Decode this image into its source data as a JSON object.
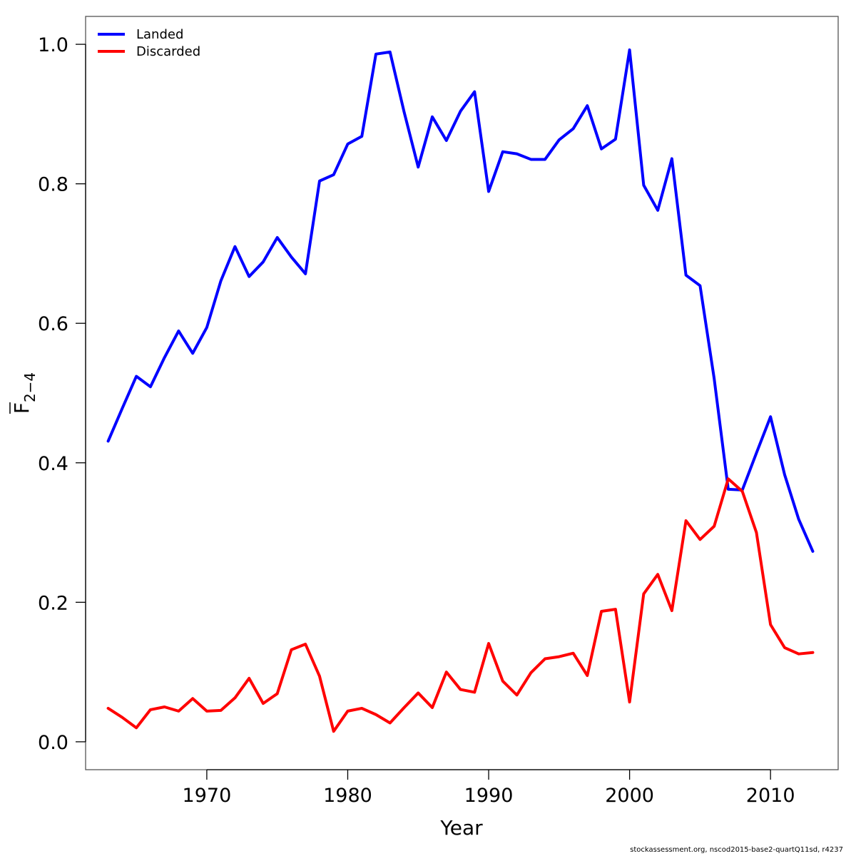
{
  "chart_data": {
    "type": "line",
    "xlabel": "Year",
    "ylabel": "F̅₂₋₄",
    "ylabel_main": "F",
    "ylabel_sub": "2−4",
    "xlim": [
      1961.4,
      2014.8
    ],
    "ylim": [
      -0.04,
      1.04
    ],
    "xticks": [
      1970,
      1980,
      1990,
      2000,
      2010
    ],
    "yticks": [
      0.0,
      0.2,
      0.4,
      0.6,
      0.8,
      1.0
    ],
    "ytick_labels": [
      "0.0",
      "0.2",
      "0.4",
      "0.6",
      "0.8",
      "1.0"
    ],
    "legend_position": "top-left",
    "x": [
      1963,
      1964,
      1965,
      1966,
      1967,
      1968,
      1969,
      1970,
      1971,
      1972,
      1973,
      1974,
      1975,
      1976,
      1977,
      1978,
      1979,
      1980,
      1981,
      1982,
      1983,
      1984,
      1985,
      1986,
      1987,
      1988,
      1989,
      1990,
      1991,
      1992,
      1993,
      1994,
      1995,
      1996,
      1997,
      1998,
      1999,
      2000,
      2001,
      2002,
      2003,
      2004,
      2005,
      2006,
      2007,
      2008,
      2009,
      2010,
      2011,
      2012,
      2013
    ],
    "series": [
      {
        "name": "Landed",
        "color": "#0000ff",
        "values": [
          0.431,
          0.478,
          0.524,
          0.509,
          0.551,
          0.589,
          0.557,
          0.594,
          0.661,
          0.71,
          0.667,
          0.688,
          0.723,
          0.695,
          0.671,
          0.804,
          0.813,
          0.857,
          0.868,
          0.986,
          0.989,
          0.903,
          0.824,
          0.896,
          0.862,
          0.904,
          0.932,
          0.789,
          0.846,
          0.843,
          0.835,
          0.835,
          0.863,
          0.879,
          0.912,
          0.85,
          0.864,
          0.992,
          0.798,
          0.762,
          0.836,
          0.669,
          0.654,
          0.521,
          0.362,
          0.361,
          0.414,
          0.466,
          0.383,
          0.319,
          0.273
        ]
      },
      {
        "name": "Discarded",
        "color": "#ff0000",
        "values": [
          0.048,
          0.035,
          0.02,
          0.046,
          0.05,
          0.044,
          0.062,
          0.044,
          0.045,
          0.063,
          0.091,
          0.055,
          0.069,
          0.132,
          0.14,
          0.094,
          0.015,
          0.044,
          0.048,
          0.039,
          0.027,
          0.049,
          0.07,
          0.049,
          0.1,
          0.075,
          0.071,
          0.141,
          0.087,
          0.067,
          0.099,
          0.119,
          0.122,
          0.127,
          0.095,
          0.187,
          0.19,
          0.057,
          0.212,
          0.24,
          0.188,
          0.317,
          0.29,
          0.309,
          0.377,
          0.359,
          0.3,
          0.168,
          0.135,
          0.126,
          0.128
        ]
      }
    ]
  },
  "footer": {
    "source": "stockassessment.org, nscod2015-base2-quartQ11sd, r4237"
  }
}
